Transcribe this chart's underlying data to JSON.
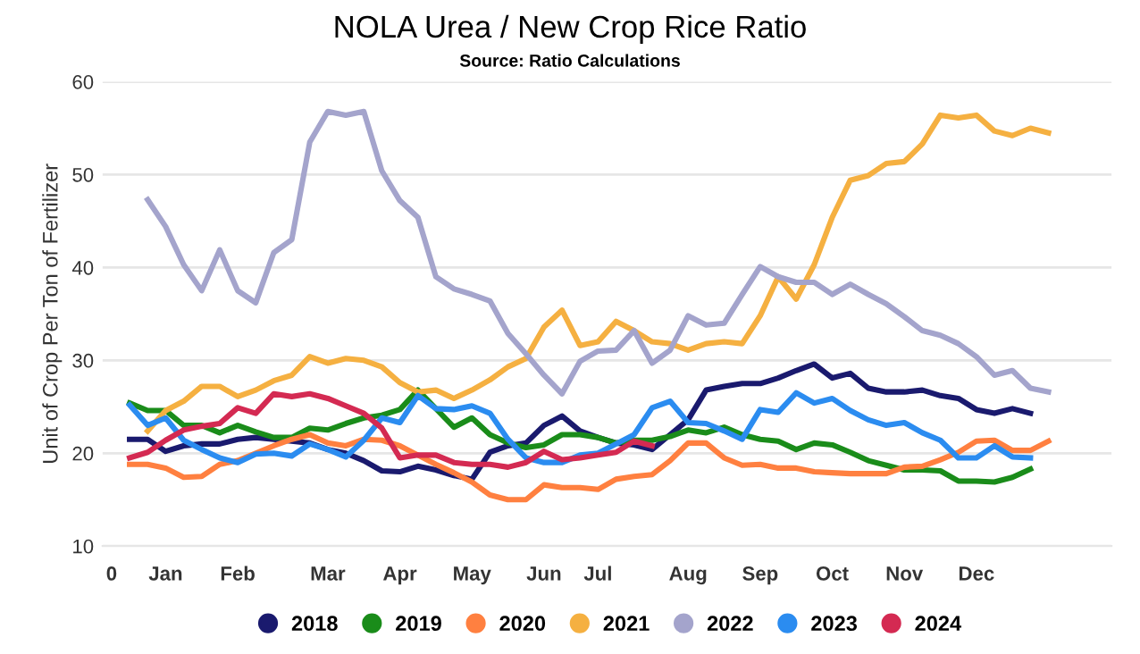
{
  "chart_data": {
    "type": "line",
    "title": "NOLA Urea / New Crop Rice Ratio",
    "subtitle": "Source: Ratio Calculations",
    "ylabel": "Unit of Crop Per Ton of Fertilizer",
    "categories": [
      "0",
      null,
      null,
      "Jan",
      null,
      null,
      null,
      "Feb",
      null,
      null,
      null,
      null,
      "Mar",
      null,
      null,
      null,
      "Apr",
      null,
      null,
      null,
      "May",
      null,
      null,
      null,
      "Jun",
      null,
      null,
      "Jul",
      null,
      null,
      null,
      null,
      "Aug",
      null,
      null,
      null,
      "Sep",
      null,
      null,
      null,
      "Oct",
      null,
      null,
      null,
      "Nov",
      null,
      null,
      null,
      "Dec",
      null,
      null,
      null,
      null,
      null
    ],
    "ylim": [
      10,
      60
    ],
    "yticks": [
      10,
      20,
      30,
      40,
      50,
      60
    ],
    "grid": "y",
    "legend": "bottom",
    "marker": "none",
    "line_style": "solid",
    "series": [
      {
        "name": "2018",
        "color": "#1a1a6e",
        "values": [
          null,
          21.5,
          21.5,
          20.2,
          20.8,
          21,
          21,
          21.5,
          21.7,
          21.5,
          21.3,
          21.1,
          20.4,
          20,
          19.2,
          18.1,
          18,
          18.6,
          18.2,
          17.6,
          17.2,
          20.1,
          20.8,
          21.1,
          23,
          24,
          22.4,
          21.7,
          21.1,
          20.9,
          20.4,
          22,
          23.6,
          26.8,
          27.2,
          27.5,
          27.5,
          28.1,
          28.9,
          29.6,
          28.1,
          28.6,
          27,
          26.6,
          26.6,
          26.8,
          26.2,
          25.9,
          24.7,
          24.3,
          24.8,
          24.3,
          null,
          null
        ]
      },
      {
        "name": "2019",
        "color": "#1a8c1a",
        "values": [
          null,
          25.4,
          24.6,
          24.6,
          23,
          23,
          22.2,
          23,
          22.3,
          21.7,
          21.7,
          22.7,
          22.5,
          23.2,
          23.8,
          24.1,
          24.7,
          26.8,
          24.8,
          22.8,
          23.8,
          22,
          21.1,
          20.6,
          20.9,
          22,
          22,
          21.7,
          21.1,
          21.4,
          21.4,
          21.8,
          22.5,
          22.2,
          22.8,
          22,
          21.5,
          21.3,
          20.4,
          21.1,
          20.9,
          20.1,
          19.2,
          18.7,
          18.2,
          18.2,
          18.1,
          17,
          17,
          16.9,
          17.4,
          18.3,
          null,
          null
        ]
      },
      {
        "name": "2020",
        "color": "#ff8040",
        "values": [
          null,
          18.8,
          18.8,
          18.4,
          17.4,
          17.5,
          18.8,
          19.2,
          20,
          20.8,
          21.5,
          22,
          21.1,
          20.8,
          21.5,
          21.4,
          20.8,
          19.8,
          18.8,
          17.9,
          16.9,
          15.5,
          15,
          15,
          16.6,
          16.3,
          16.3,
          16.1,
          17.2,
          17.5,
          17.7,
          19.2,
          21.1,
          21.1,
          19.5,
          18.7,
          18.8,
          18.4,
          18.4,
          18,
          17.9,
          17.8,
          17.8,
          17.8,
          18.5,
          18.6,
          19.3,
          20.1,
          21.3,
          21.4,
          20.3,
          20.3,
          21.3,
          null
        ]
      },
      {
        "name": "2021",
        "color": "#f5b041",
        "values": [
          null,
          null,
          22.4,
          24.6,
          25.6,
          27.2,
          27.2,
          26.1,
          26.8,
          27.8,
          28.4,
          30.4,
          29.7,
          30.2,
          30,
          29.3,
          27.6,
          26.6,
          26.8,
          25.9,
          26.8,
          27.9,
          29.3,
          30.2,
          33.6,
          35.4,
          31.6,
          32,
          34.2,
          33.2,
          32,
          31.8,
          31.1,
          31.8,
          32,
          31.8,
          34.8,
          39,
          36.6,
          40.3,
          45.4,
          49.4,
          49.9,
          51.2,
          51.4,
          53.3,
          56.4,
          56.1,
          56.4,
          54.7,
          54.2,
          55,
          54.5,
          null
        ]
      },
      {
        "name": "2022",
        "color": "#a4a4cc",
        "values": [
          null,
          null,
          47.3,
          44.4,
          40.3,
          37.5,
          41.9,
          37.5,
          36.2,
          41.6,
          43,
          53.5,
          56.8,
          56.4,
          56.8,
          50.4,
          47.2,
          45.4,
          39,
          37.7,
          37.1,
          36.4,
          32.9,
          30.7,
          28.4,
          26.4,
          29.9,
          31,
          31.1,
          33.2,
          29.7,
          31.1,
          34.8,
          33.8,
          34,
          37.1,
          40.1,
          39,
          38.4,
          38.4,
          37.1,
          38.2,
          37.1,
          36.1,
          34.7,
          33.2,
          32.7,
          31.8,
          30.4,
          28.4,
          28.9,
          27,
          26.6,
          null
        ]
      },
      {
        "name": "2023",
        "color": "#2b8cf0",
        "values": [
          null,
          25.2,
          23,
          23.8,
          21.4,
          20.4,
          19.5,
          19,
          19.9,
          20,
          19.7,
          21,
          20.4,
          19.6,
          21.4,
          23.8,
          23.3,
          26.2,
          24.8,
          24.7,
          25.1,
          24.3,
          21.5,
          19.5,
          19,
          19,
          19.8,
          20,
          21,
          22,
          24.9,
          25.6,
          23.3,
          23.2,
          22.4,
          21.5,
          24.7,
          24.4,
          26.5,
          25.4,
          25.9,
          24.6,
          23.6,
          23,
          23.3,
          22.2,
          21.4,
          19.5,
          19.5,
          20.8,
          19.6,
          19.5,
          null,
          null
        ]
      },
      {
        "name": "2024",
        "color": "#d42a52",
        "values": [
          null,
          19.5,
          20.1,
          21.4,
          22.5,
          22.9,
          23.2,
          24.9,
          24.3,
          26.4,
          26.1,
          26.4,
          25.9,
          25.1,
          24.3,
          22.7,
          19.5,
          19.8,
          19.8,
          19,
          18.8,
          18.8,
          18.5,
          19,
          20.2,
          19.3,
          19.5,
          19.8,
          20.1,
          21.3,
          20.8,
          null,
          null,
          null,
          null,
          null,
          null,
          null,
          null,
          null,
          null,
          null,
          null,
          null,
          null,
          null,
          null,
          null,
          null,
          null,
          null,
          null,
          null,
          null
        ]
      }
    ]
  }
}
